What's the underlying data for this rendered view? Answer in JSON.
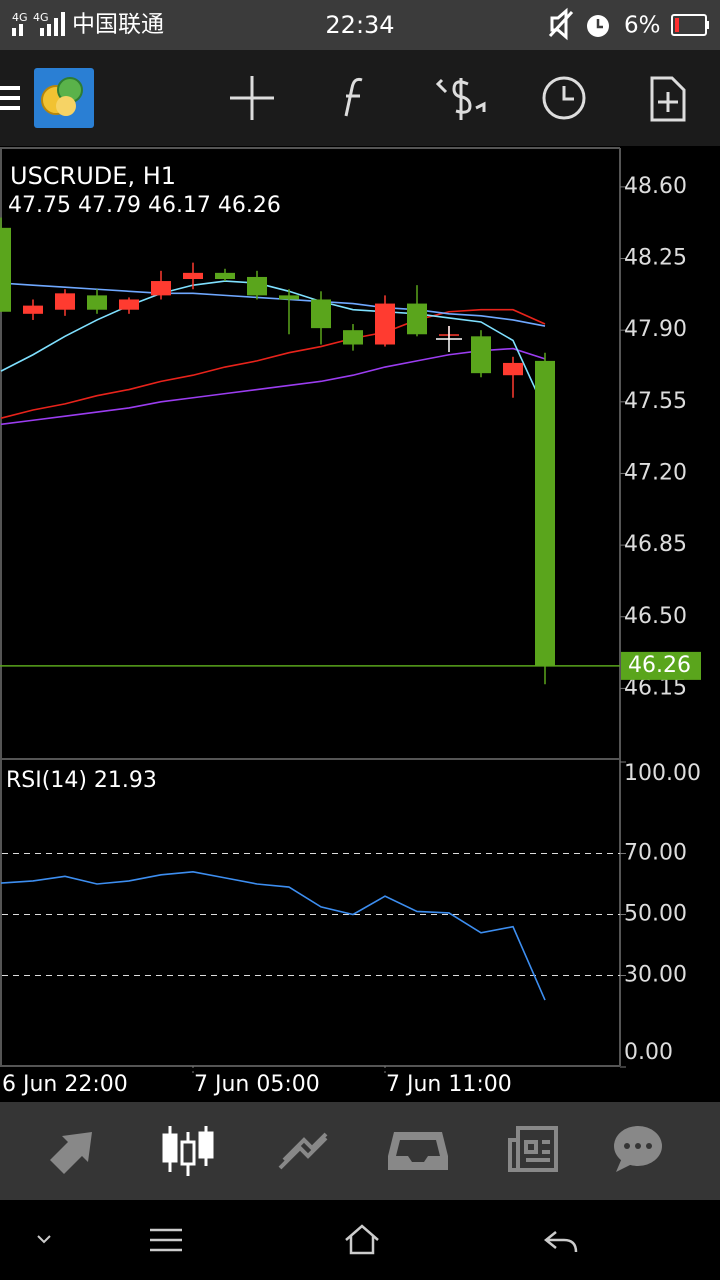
{
  "status_bar": {
    "network": [
      "4G",
      "4G"
    ],
    "carrier": "中国联通",
    "time": "22:34",
    "battery": "6%"
  },
  "chart": {
    "symbol": "USCRUDE, H1",
    "ohlc": "47.75 47.79 46.17 46.26",
    "up_color": "#ff3b30",
    "down_color": "#5aa51c",
    "ylim": [
      45.81,
      48.79
    ],
    "yticks": [
      {
        "value": 48.6,
        "label": "48.60"
      },
      48.25,
      {
        "value": 47.9,
        "label": "47.90"
      },
      47.55,
      {
        "value": 47.2,
        "label": "47.20"
      },
      46.85,
      {
        "value": 46.5,
        "label": "46.50"
      },
      46.15
    ],
    "last_price": 46.26,
    "times": [
      "6 Jun 22:00",
      null,
      null,
      null,
      null,
      null,
      "7 Jun 05:00",
      null,
      null,
      null,
      null,
      null,
      "7 Jun 11:00",
      null,
      null,
      null,
      null,
      null
    ],
    "candles": {
      "open": [
        48.4,
        47.98,
        48.0,
        48.07,
        48.0,
        48.07,
        48.15,
        48.18,
        48.16,
        48.07,
        48.05,
        47.9,
        47.83,
        48.03,
        47.88,
        47.87,
        47.68,
        47.75
      ],
      "high": [
        48.45,
        48.05,
        48.1,
        48.1,
        48.06,
        48.19,
        48.23,
        48.2,
        48.19,
        48.1,
        48.09,
        47.93,
        48.07,
        48.12,
        47.92,
        47.9,
        47.77,
        47.79
      ],
      "low": [
        47.99,
        47.95,
        47.97,
        47.98,
        47.98,
        48.05,
        48.1,
        48.14,
        48.05,
        47.88,
        47.83,
        47.8,
        47.82,
        47.87,
        47.86,
        47.67,
        47.57,
        46.17
      ],
      "close": [
        47.99,
        48.02,
        48.08,
        48.0,
        48.05,
        48.14,
        48.18,
        48.15,
        48.07,
        48.05,
        47.91,
        47.83,
        48.03,
        47.88,
        47.88,
        47.69,
        47.74,
        46.26
      ]
    },
    "moving_averages": [
      {
        "color": "#e8231b",
        "values": [
          47.47,
          47.51,
          47.54,
          47.58,
          47.61,
          47.65,
          47.68,
          47.72,
          47.75,
          47.79,
          47.82,
          47.86,
          47.89,
          47.95,
          47.99,
          48.0,
          48.0,
          47.93
        ]
      },
      {
        "color": "#9b3df0",
        "values": [
          47.44,
          47.46,
          47.48,
          47.5,
          47.52,
          47.55,
          47.57,
          47.59,
          47.61,
          47.63,
          47.65,
          47.68,
          47.72,
          47.75,
          47.78,
          47.8,
          47.81,
          47.76
        ]
      },
      {
        "color": "#6fa8ff",
        "values": [
          48.13,
          48.12,
          48.11,
          48.1,
          48.09,
          48.08,
          48.08,
          48.07,
          48.06,
          48.05,
          48.04,
          48.03,
          48.01,
          48.0,
          47.98,
          47.97,
          47.95,
          47.92
        ]
      },
      {
        "color": "#7fe0ff",
        "values": [
          47.7,
          47.78,
          47.87,
          47.95,
          48.02,
          48.08,
          48.12,
          48.14,
          48.13,
          48.09,
          48.04,
          48.0,
          47.99,
          47.98,
          47.96,
          47.94,
          47.85,
          47.51
        ]
      }
    ],
    "rsi": {
      "title": "RSI(14) 21.93",
      "color": "#3d8ef0",
      "ylim": [
        0,
        100
      ],
      "yticks": [
        {
          "value": 100,
          "label": "100.00"
        },
        {
          "value": 70,
          "label": "70.00"
        },
        {
          "value": 50,
          "label": "50.00"
        },
        {
          "value": 30,
          "label": "30.00"
        },
        {
          "value": 0,
          "label": "0.00"
        }
      ],
      "levels": [
        70,
        50,
        30
      ],
      "values": [
        60.3,
        61,
        62.5,
        60,
        61,
        63,
        64,
        62,
        60,
        59,
        52.5,
        50,
        56,
        51,
        50.5,
        44,
        46,
        21.93
      ]
    }
  }
}
